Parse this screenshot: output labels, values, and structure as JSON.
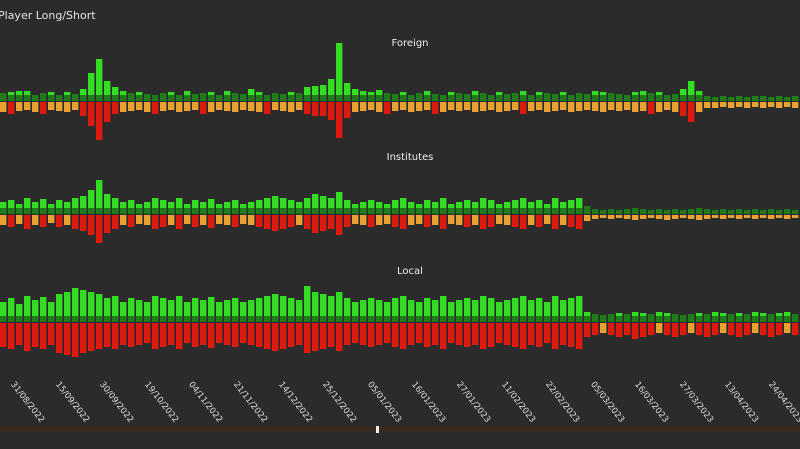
{
  "title": "Player Long/Short",
  "chart_data": [
    {
      "type": "bar",
      "title": "Foreign",
      "long": [
        8,
        9,
        10,
        10,
        6,
        8,
        9,
        6,
        9,
        7,
        12,
        28,
        42,
        20,
        14,
        10,
        8,
        9,
        7,
        6,
        8,
        9,
        6,
        10,
        7,
        8,
        9,
        6,
        10,
        8,
        7,
        12,
        9,
        6,
        8,
        7,
        9,
        8,
        14,
        15,
        16,
        22,
        58,
        18,
        12,
        10,
        9,
        11,
        8,
        7,
        9,
        6,
        8,
        10,
        7,
        6,
        9,
        8,
        7,
        10,
        8,
        6,
        9,
        7,
        8,
        10,
        6,
        9,
        8,
        7,
        9,
        6,
        8,
        7,
        10,
        9,
        8,
        7,
        6,
        9,
        10,
        8,
        9,
        6,
        7,
        12,
        20,
        10,
        5,
        4,
        5,
        4,
        5,
        4,
        5,
        5,
        4,
        5,
        4,
        5
      ],
      "short": [
        10,
        12,
        9,
        8,
        10,
        12,
        8,
        9,
        10,
        8,
        14,
        24,
        38,
        20,
        12,
        10,
        9,
        8,
        10,
        12,
        9,
        8,
        10,
        9,
        8,
        12,
        10,
        8,
        9,
        10,
        8,
        9,
        10,
        12,
        8,
        9,
        10,
        8,
        12,
        14,
        14,
        18,
        36,
        16,
        10,
        9,
        8,
        10,
        12,
        9,
        8,
        10,
        9,
        8,
        12,
        10,
        8,
        9,
        8,
        10,
        9,
        8,
        10,
        9,
        8,
        12,
        9,
        8,
        10,
        9,
        8,
        10,
        9,
        8,
        9,
        10,
        8,
        9,
        8,
        10,
        9,
        12,
        10,
        8,
        10,
        14,
        20,
        10,
        6,
        6,
        5,
        6,
        5,
        6,
        5,
        6,
        5,
        6,
        5,
        6
      ]
    },
    {
      "type": "bar",
      "title": "Institutes",
      "long": [
        12,
        14,
        10,
        16,
        12,
        15,
        10,
        14,
        12,
        16,
        18,
        24,
        34,
        20,
        16,
        12,
        14,
        10,
        12,
        16,
        14,
        12,
        16,
        10,
        14,
        12,
        15,
        10,
        12,
        14,
        10,
        12,
        14,
        16,
        18,
        16,
        14,
        12,
        16,
        20,
        18,
        16,
        22,
        14,
        10,
        12,
        14,
        12,
        10,
        14,
        16,
        12,
        10,
        14,
        12,
        16,
        10,
        12,
        14,
        12,
        16,
        14,
        10,
        12,
        14,
        16,
        12,
        14,
        10,
        16,
        12,
        14,
        16,
        8,
        5,
        4,
        5,
        4,
        5,
        6,
        5,
        4,
        5,
        4,
        5,
        4,
        5,
        6,
        5,
        4,
        5,
        4,
        5,
        4,
        5,
        4,
        5,
        4,
        5,
        4
      ],
      "short": [
        10,
        12,
        9,
        14,
        10,
        12,
        8,
        12,
        10,
        14,
        16,
        20,
        28,
        18,
        14,
        10,
        12,
        9,
        10,
        14,
        12,
        10,
        14,
        9,
        12,
        10,
        13,
        9,
        10,
        12,
        9,
        10,
        12,
        14,
        16,
        14,
        12,
        10,
        14,
        18,
        16,
        14,
        20,
        12,
        9,
        10,
        12,
        10,
        9,
        12,
        14,
        10,
        9,
        12,
        10,
        14,
        9,
        10,
        12,
        10,
        14,
        12,
        9,
        10,
        12,
        14,
        10,
        12,
        9,
        14,
        10,
        12,
        14,
        6,
        4,
        3,
        4,
        3,
        4,
        5,
        4,
        3,
        4,
        5,
        4,
        3,
        4,
        5,
        4,
        3,
        4,
        3,
        4,
        3,
        4,
        3,
        4,
        3,
        4,
        3
      ]
    },
    {
      "type": "bar",
      "title": "Local",
      "long": [
        20,
        24,
        18,
        26,
        22,
        25,
        20,
        28,
        30,
        34,
        32,
        30,
        28,
        24,
        26,
        20,
        24,
        22,
        20,
        26,
        24,
        22,
        26,
        20,
        24,
        22,
        25,
        20,
        22,
        24,
        20,
        22,
        24,
        26,
        28,
        26,
        24,
        22,
        36,
        30,
        28,
        26,
        30,
        24,
        20,
        22,
        24,
        22,
        20,
        24,
        26,
        22,
        20,
        24,
        22,
        26,
        20,
        22,
        24,
        22,
        26,
        24,
        20,
        22,
        24,
        26,
        22,
        24,
        20,
        26,
        22,
        24,
        26,
        10,
        8,
        7,
        8,
        9,
        8,
        10,
        9,
        8,
        10,
        9,
        8,
        7,
        8,
        9,
        8,
        10,
        9,
        8,
        9,
        8,
        10,
        9,
        8,
        9,
        10,
        8
      ],
      "short": [
        24,
        26,
        22,
        28,
        24,
        26,
        22,
        30,
        32,
        34,
        30,
        28,
        26,
        24,
        26,
        22,
        24,
        22,
        20,
        26,
        24,
        22,
        26,
        20,
        24,
        22,
        25,
        20,
        22,
        24,
        20,
        22,
        24,
        26,
        28,
        26,
        24,
        22,
        30,
        28,
        26,
        24,
        28,
        22,
        20,
        22,
        24,
        22,
        20,
        24,
        26,
        22,
        20,
        24,
        22,
        26,
        20,
        22,
        24,
        22,
        26,
        24,
        20,
        22,
        24,
        26,
        22,
        24,
        20,
        26,
        22,
        24,
        26,
        14,
        12,
        10,
        12,
        14,
        12,
        16,
        14,
        12,
        10,
        12,
        14,
        12,
        10,
        12,
        14,
        12,
        10,
        12,
        14,
        12,
        10,
        12,
        14,
        12,
        10,
        12
      ]
    }
  ],
  "dates": [
    "31/08/2022",
    "15/09/2022",
    "30/09/2022",
    "19/10/2022",
    "04/11/2022",
    "21/11/2022",
    "14/12/2022",
    "25/12/2022",
    "05/01/2023",
    "16/01/2023",
    "27/01/2023",
    "11/02/2023",
    "22/02/2023",
    "05/03/2023",
    "16/03/2023",
    "27/03/2023",
    "13/04/2023",
    "24/04/2023"
  ],
  "colors": {
    "long_strong": "#33dd22",
    "long_weak": "#1f7a1a",
    "short_strong": "#dd1a10",
    "short_weak": "#e8a030",
    "background": "#2b2b2b"
  }
}
